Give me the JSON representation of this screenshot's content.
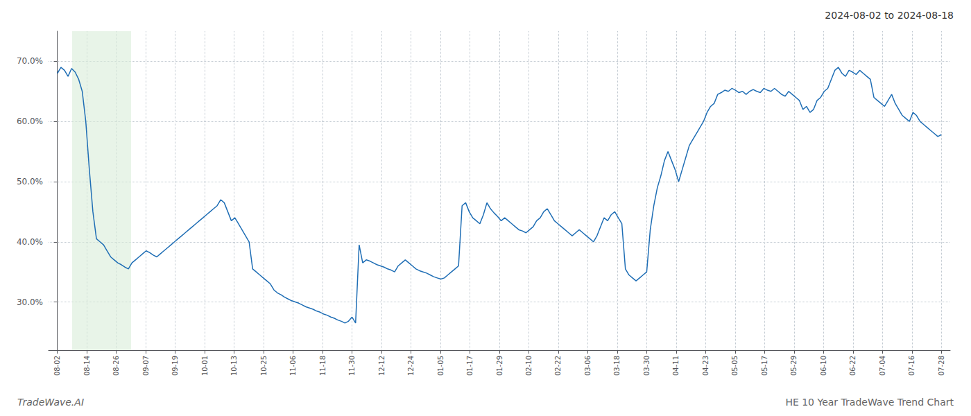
{
  "chart_data": {
    "type": "line",
    "title": "2024-08-02 to 2024-08-18",
    "footer_left": "TradeWave.AI",
    "footer_right": "HE 10 Year TradeWave Trend Chart",
    "color": "#1f6eb5",
    "grid": true,
    "highlight": {
      "x": [
        4.15,
        20.75
      ],
      "color": "#d8edd8"
    },
    "xlim": [
      -2.49,
      251.49
    ],
    "xticks": [
      {
        "value": 0,
        "label": "08-02"
      },
      {
        "value": 8.3,
        "label": "08-14"
      },
      {
        "value": 16.6,
        "label": "08-26"
      },
      {
        "value": 24.9,
        "label": "09-07"
      },
      {
        "value": 33.2,
        "label": "09-19"
      },
      {
        "value": 41.5,
        "label": "10-01"
      },
      {
        "value": 49.8,
        "label": "10-13"
      },
      {
        "value": 58.1,
        "label": "10-25"
      },
      {
        "value": 66.4,
        "label": "11-06"
      },
      {
        "value": 74.7,
        "label": "11-18"
      },
      {
        "value": 83,
        "label": "11-30"
      },
      {
        "value": 91.3,
        "label": "12-12"
      },
      {
        "value": 99.6,
        "label": "12-24"
      },
      {
        "value": 107.9,
        "label": "01-05"
      },
      {
        "value": 116.2,
        "label": "01-17"
      },
      {
        "value": 124.5,
        "label": "01-29"
      },
      {
        "value": 132.8,
        "label": "02-10"
      },
      {
        "value": 141.1,
        "label": "02-22"
      },
      {
        "value": 149.4,
        "label": "03-06"
      },
      {
        "value": 157.7,
        "label": "03-18"
      },
      {
        "value": 166,
        "label": "03-30"
      },
      {
        "value": 174.3,
        "label": "04-11"
      },
      {
        "value": 182.6,
        "label": "04-23"
      },
      {
        "value": 190.9,
        "label": "05-05"
      },
      {
        "value": 199.2,
        "label": "05-17"
      },
      {
        "value": 207.5,
        "label": "05-29"
      },
      {
        "value": 215.8,
        "label": "06-10"
      },
      {
        "value": 224.1,
        "label": "06-22"
      },
      {
        "value": 232.4,
        "label": "07-04"
      },
      {
        "value": 240.7,
        "label": "07-16"
      },
      {
        "value": 249,
        "label": "07-28"
      }
    ],
    "ylim": [
      22,
      75
    ],
    "yticks": [
      {
        "value": 30.0,
        "label": "30.0%"
      },
      {
        "value": 40.0,
        "label": "40.0%"
      },
      {
        "value": 50.0,
        "label": "50.0%"
      },
      {
        "value": 60.0,
        "label": "60.0%"
      },
      {
        "value": 70.0,
        "label": "70.0%"
      }
    ],
    "x": [
      0,
      1,
      2,
      3,
      4,
      5,
      6,
      7,
      8,
      9,
      10,
      11,
      12,
      13,
      14,
      15,
      16,
      17,
      18,
      19,
      20,
      21,
      22,
      23,
      24,
      25,
      26,
      27,
      28,
      29,
      30,
      31,
      32,
      33,
      34,
      35,
      36,
      37,
      38,
      39,
      40,
      41,
      42,
      43,
      44,
      45,
      46,
      47,
      48,
      49,
      50,
      51,
      52,
      53,
      54,
      55,
      56,
      57,
      58,
      59,
      60,
      61,
      62,
      63,
      64,
      65,
      66,
      67,
      68,
      69,
      70,
      71,
      72,
      73,
      74,
      75,
      76,
      77,
      78,
      79,
      80,
      81,
      82,
      83,
      84,
      85,
      86,
      87,
      88,
      89,
      90,
      91,
      92,
      93,
      94,
      95,
      96,
      97,
      98,
      99,
      100,
      101,
      102,
      103,
      104,
      105,
      106,
      107,
      108,
      109,
      110,
      111,
      112,
      113,
      114,
      115,
      116,
      117,
      118,
      119,
      120,
      121,
      122,
      123,
      124,
      125,
      126,
      127,
      128,
      129,
      130,
      131,
      132,
      133,
      134,
      135,
      136,
      137,
      138,
      139,
      140,
      141,
      142,
      143,
      144,
      145,
      146,
      147,
      148,
      149,
      150,
      151,
      152,
      153,
      154,
      155,
      156,
      157,
      158,
      159,
      160,
      161,
      162,
      163,
      164,
      165,
      166,
      167,
      168,
      169,
      170,
      171,
      172,
      173,
      174,
      175,
      176,
      177,
      178,
      179,
      180,
      181,
      182,
      183,
      184,
      185,
      186,
      187,
      188,
      189,
      190,
      191,
      192,
      193,
      194,
      195,
      196,
      197,
      198,
      199,
      200,
      201,
      202,
      203,
      204,
      205,
      206,
      207,
      208,
      209,
      210,
      211,
      212,
      213,
      214,
      215,
      216,
      217,
      218,
      219,
      220,
      221,
      222,
      223,
      224,
      225,
      226,
      227,
      228,
      229,
      230,
      231,
      232,
      233,
      234,
      235,
      236,
      237,
      238,
      239,
      240,
      241,
      242,
      243,
      244,
      245,
      246,
      247,
      248,
      249
    ],
    "values": [
      68.0,
      69.0,
      68.5,
      67.5,
      68.8,
      68.2,
      67.0,
      65.0,
      60.0,
      52.0,
      45.0,
      40.5,
      40.0,
      39.5,
      38.5,
      37.5,
      37.0,
      36.5,
      36.2,
      35.8,
      35.5,
      36.5,
      37.0,
      37.5,
      38.0,
      38.5,
      38.2,
      37.8,
      37.5,
      38.0,
      38.5,
      39.0,
      39.5,
      40.0,
      40.5,
      41.0,
      41.5,
      42.0,
      42.5,
      43.0,
      43.5,
      44.0,
      44.5,
      45.0,
      45.5,
      46.0,
      47.0,
      46.5,
      45.0,
      43.5,
      44.0,
      43.0,
      42.0,
      41.0,
      40.0,
      35.5,
      35.0,
      34.5,
      34.0,
      33.5,
      33.0,
      32.0,
      31.5,
      31.2,
      30.8,
      30.5,
      30.2,
      30.0,
      29.8,
      29.5,
      29.2,
      29.0,
      28.8,
      28.5,
      28.3,
      28.0,
      27.8,
      27.5,
      27.3,
      27.0,
      26.8,
      26.5,
      26.8,
      27.5,
      26.5,
      39.5,
      36.5,
      37.0,
      36.8,
      36.5,
      36.2,
      36.0,
      35.8,
      35.5,
      35.3,
      35.0,
      36.0,
      36.5,
      37.0,
      36.5,
      36.0,
      35.5,
      35.2,
      35.0,
      34.8,
      34.5,
      34.2,
      34.0,
      33.8,
      34.0,
      34.5,
      35.0,
      35.5,
      36.0,
      46.0,
      46.5,
      45.0,
      44.0,
      43.5,
      43.0,
      44.5,
      46.5,
      45.5,
      44.8,
      44.2,
      43.5,
      44.0,
      43.5,
      43.0,
      42.5,
      42.0,
      41.8,
      41.5,
      42.0,
      42.5,
      43.5,
      44.0,
      45.0,
      45.5,
      44.5,
      43.5,
      43.0,
      42.5,
      42.0,
      41.5,
      41.0,
      41.5,
      42.0,
      41.5,
      41.0,
      40.5,
      40.0,
      41.0,
      42.5,
      44.0,
      43.5,
      44.5,
      45.0,
      44.0,
      43.0,
      35.5,
      34.5,
      34.0,
      33.5,
      34.0,
      34.5,
      35.0,
      42.0,
      46.0,
      49.0,
      51.0,
      53.5,
      55.0,
      53.5,
      52.0,
      50.0,
      52.0,
      54.0,
      56.0,
      57.0,
      58.0,
      59.0,
      60.0,
      61.5,
      62.5,
      63.0,
      64.5,
      64.8,
      65.2,
      65.0,
      65.5,
      65.2,
      64.8,
      65.0,
      64.5,
      65.0,
      65.3,
      65.0,
      64.8,
      65.5,
      65.2,
      65.0,
      65.5,
      65.0,
      64.5,
      64.2,
      65.0,
      64.5,
      64.0,
      63.5,
      62.0,
      62.5,
      61.5,
      62.0,
      63.5,
      64.0,
      65.0,
      65.5,
      67.0,
      68.5,
      69.0,
      68.0,
      67.5,
      68.5,
      68.2,
      67.8,
      68.5,
      68.0,
      67.5,
      67.0,
      64.0,
      63.5,
      63.0,
      62.5,
      63.5,
      64.5,
      63.0,
      62.0,
      61.0,
      60.5,
      60.0,
      61.5,
      61.0,
      60.0,
      59.5,
      59.0,
      58.5,
      58.0,
      57.5,
      57.8
    ]
  }
}
